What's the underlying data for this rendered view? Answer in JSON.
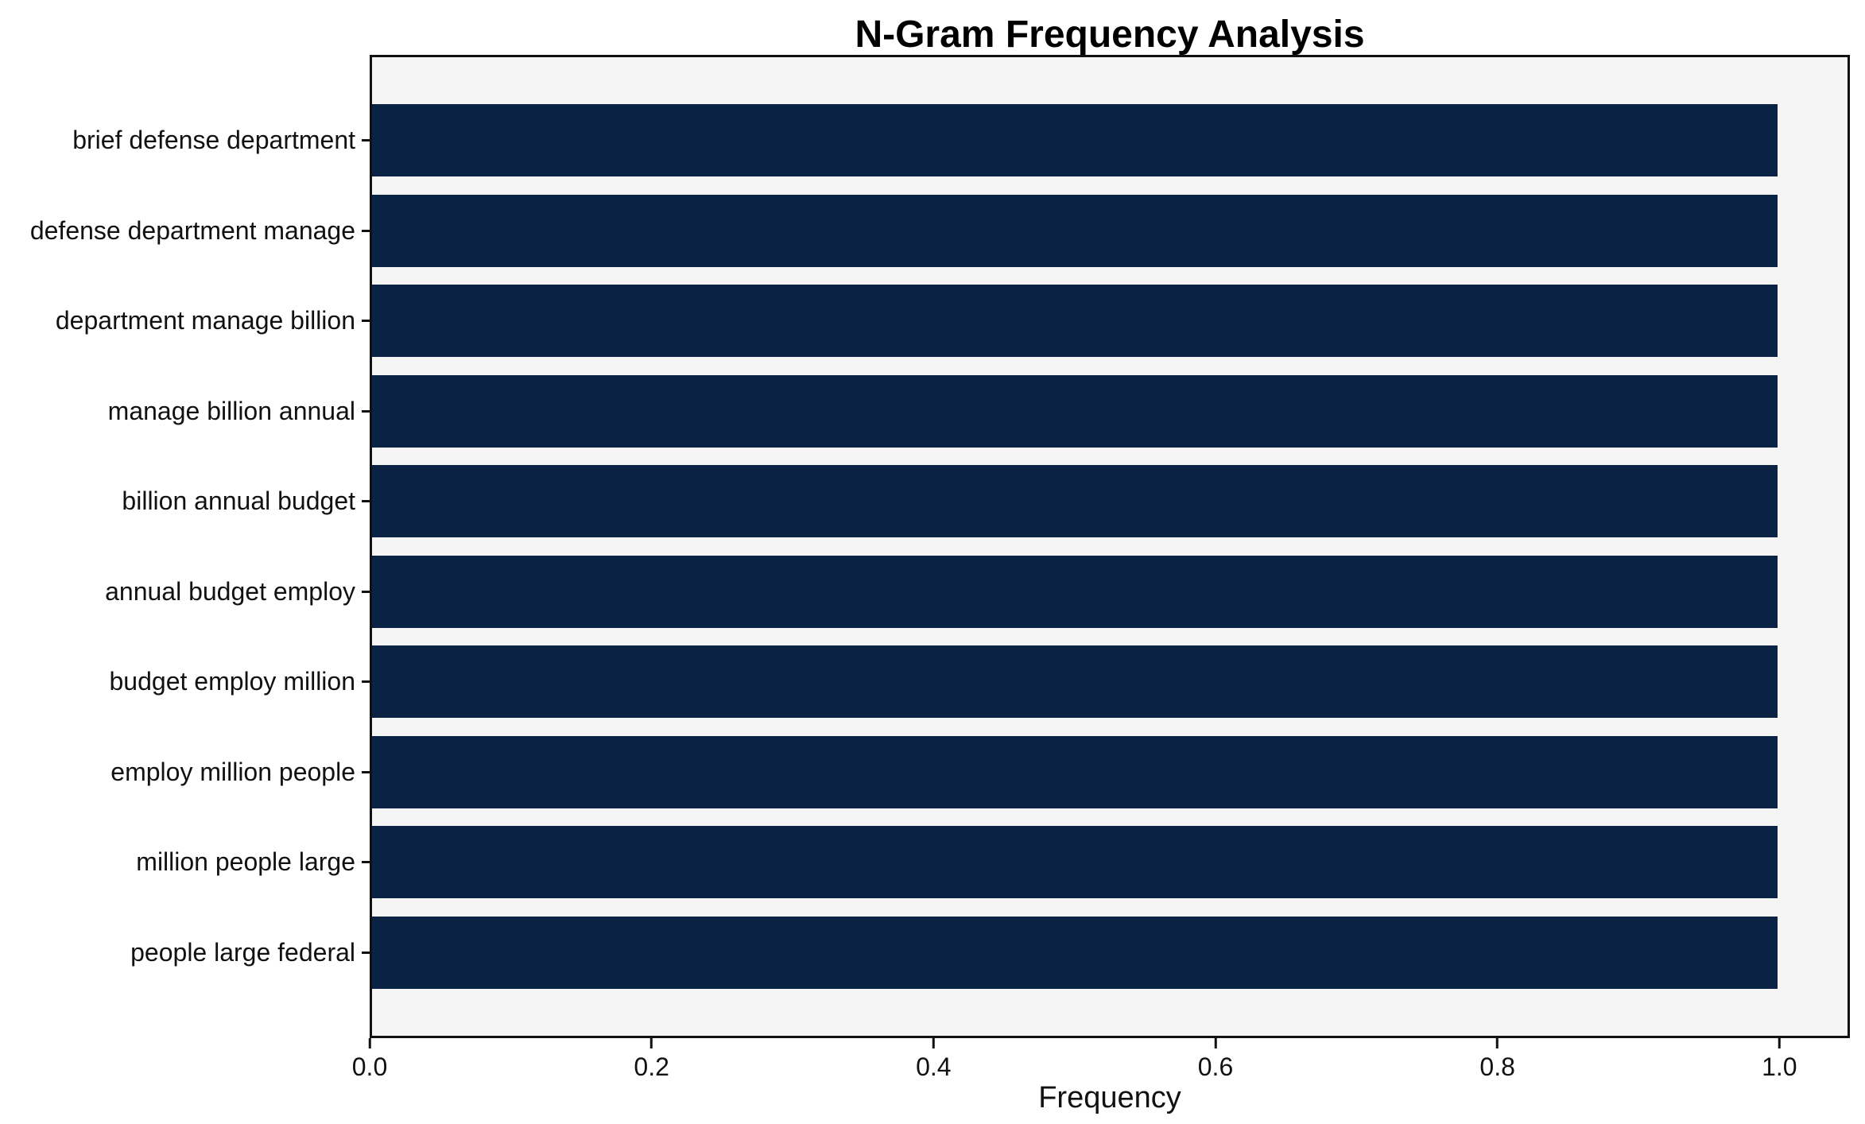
{
  "chart_data": {
    "type": "bar",
    "orientation": "horizontal",
    "title": "N-Gram Frequency Analysis",
    "xlabel": "Frequency",
    "ylabel": "",
    "categories": [
      "brief defense department",
      "defense department manage",
      "department manage billion",
      "manage billion annual",
      "billion annual budget",
      "annual budget employ",
      "budget employ million",
      "employ million people",
      "million people large",
      "people large federal"
    ],
    "values": [
      1.0,
      1.0,
      1.0,
      1.0,
      1.0,
      1.0,
      1.0,
      1.0,
      1.0,
      1.0
    ],
    "xticks": [
      0.0,
      0.2,
      0.4,
      0.6,
      0.8,
      1.0
    ],
    "xtick_labels": [
      "0.0",
      "0.2",
      "0.4",
      "0.6",
      "0.8",
      "1.0"
    ],
    "xlim": [
      0.0,
      1.05
    ],
    "grid": false,
    "legend": false,
    "style": {
      "bar_color": "#0a2344",
      "plot_background": "#f5f5f6",
      "figure_background": "#ffffff",
      "spine_color": "#111111",
      "text_color": "#111111"
    }
  }
}
